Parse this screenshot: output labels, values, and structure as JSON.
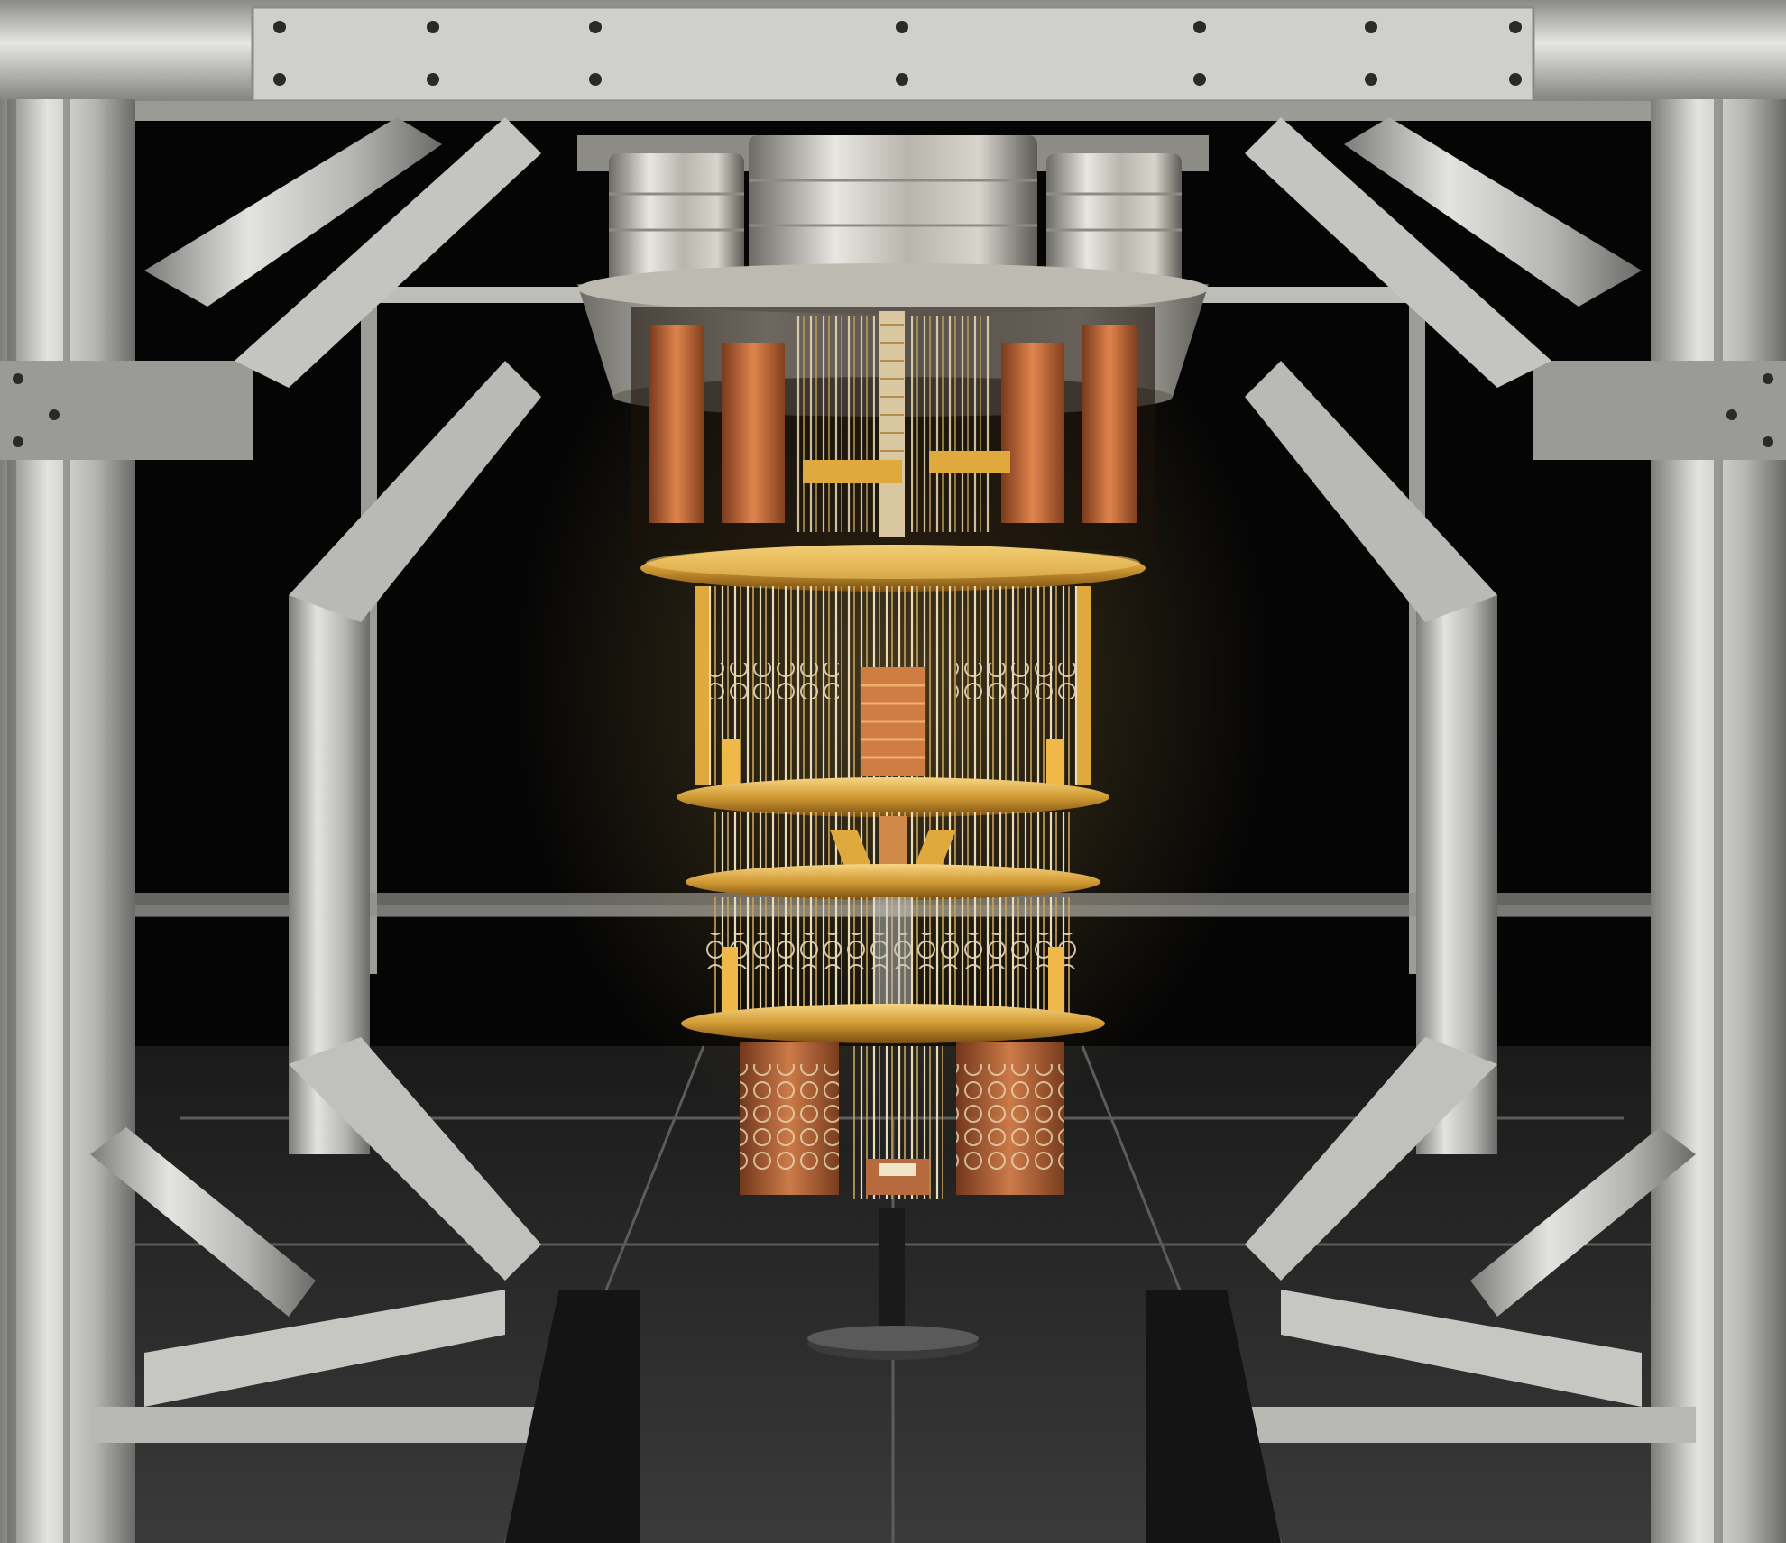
{
  "scene": {
    "subject": "dilution-refrigerator-chandelier",
    "colors": {
      "background": "#050505",
      "floor": "#2b2b2b",
      "floor_line": "#6f6f6f",
      "frame_light": "#d9d9d6",
      "frame_mid": "#a9a9a6",
      "frame_dark": "#6e6e6c",
      "aluminum": "#c9c7c2",
      "gold": "#d8a23c",
      "gold_light": "#f2cd6e",
      "gold_dark": "#8d5d16",
      "copper": "#c8693a",
      "wire": "#e9d9b4",
      "skirt": "#141414"
    }
  }
}
